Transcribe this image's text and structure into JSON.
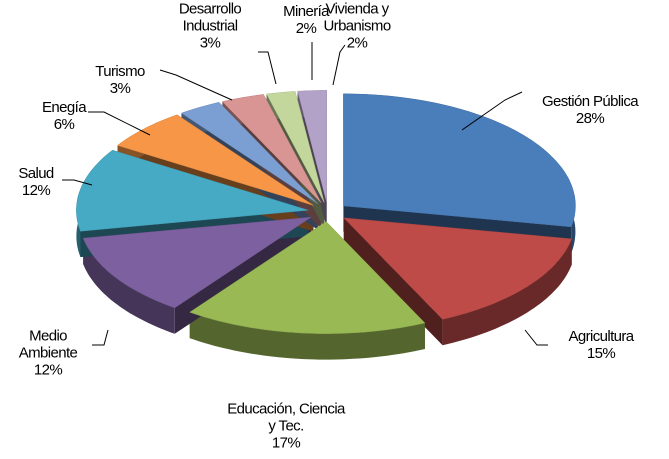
{
  "chart_data": {
    "type": "pie3d",
    "categories": [
      "Gestión Pública",
      "Agricultura",
      "Educación, Ciencia y Tec.",
      "Medio Ambiente",
      "Salud",
      "Enegía",
      "Turismo",
      "Desarrollo Industrial",
      "Minería",
      "Vivienda y Urbanismo"
    ],
    "values": [
      28,
      15,
      17,
      12,
      12,
      6,
      3,
      3,
      2,
      2
    ],
    "value_labels": [
      "28%",
      "15%",
      "17%",
      "12%",
      "12%",
      "6%",
      "3%",
      "3%",
      "2%",
      "2%"
    ],
    "colors": [
      "#4a7ebb",
      "#be4b48",
      "#98b954",
      "#7d60a0",
      "#46aac5",
      "#f79646",
      "#7b9fd3",
      "#d99594",
      "#c3d69b",
      "#b3a2c7"
    ]
  }
}
